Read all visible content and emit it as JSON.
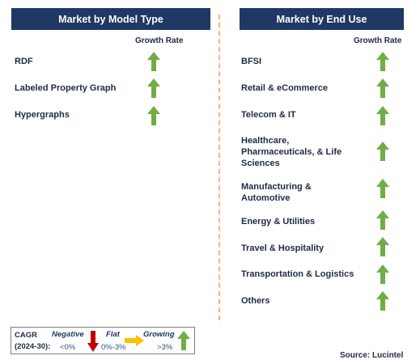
{
  "left_panel": {
    "title": "Market by Model Type",
    "growth_rate_label": "Growth Rate",
    "items": [
      "RDF",
      "Labeled Property Graph",
      "Hypergraphs"
    ]
  },
  "right_panel": {
    "title": "Market by End Use",
    "growth_rate_label": "Growth Rate",
    "items": [
      "BFSI",
      "Retail & eCommerce",
      "Telecom & IT",
      "Healthcare, Pharmaceuticals, & Life Sciences",
      "Manufacturing & Automotive",
      "Energy & Utilities",
      "Travel & Hospitality",
      "Transportation & Logistics",
      "Others"
    ]
  },
  "legend": {
    "cagr_label_line1": "CAGR",
    "cagr_label_line2": "(2024-30):",
    "negative_label": "Negative",
    "negative_range": "<0%",
    "flat_label": "Flat",
    "flat_range": "0%-3%",
    "growing_label": "Growing",
    "growing_range": ">3%"
  },
  "source": "Source: Lucintel",
  "colors": {
    "header_bg": "#1f3864",
    "growing_arrow": "#70ad47",
    "negative_arrow": "#c00000",
    "flat_arrow": "#ffc000",
    "divider": "#f4b183"
  }
}
